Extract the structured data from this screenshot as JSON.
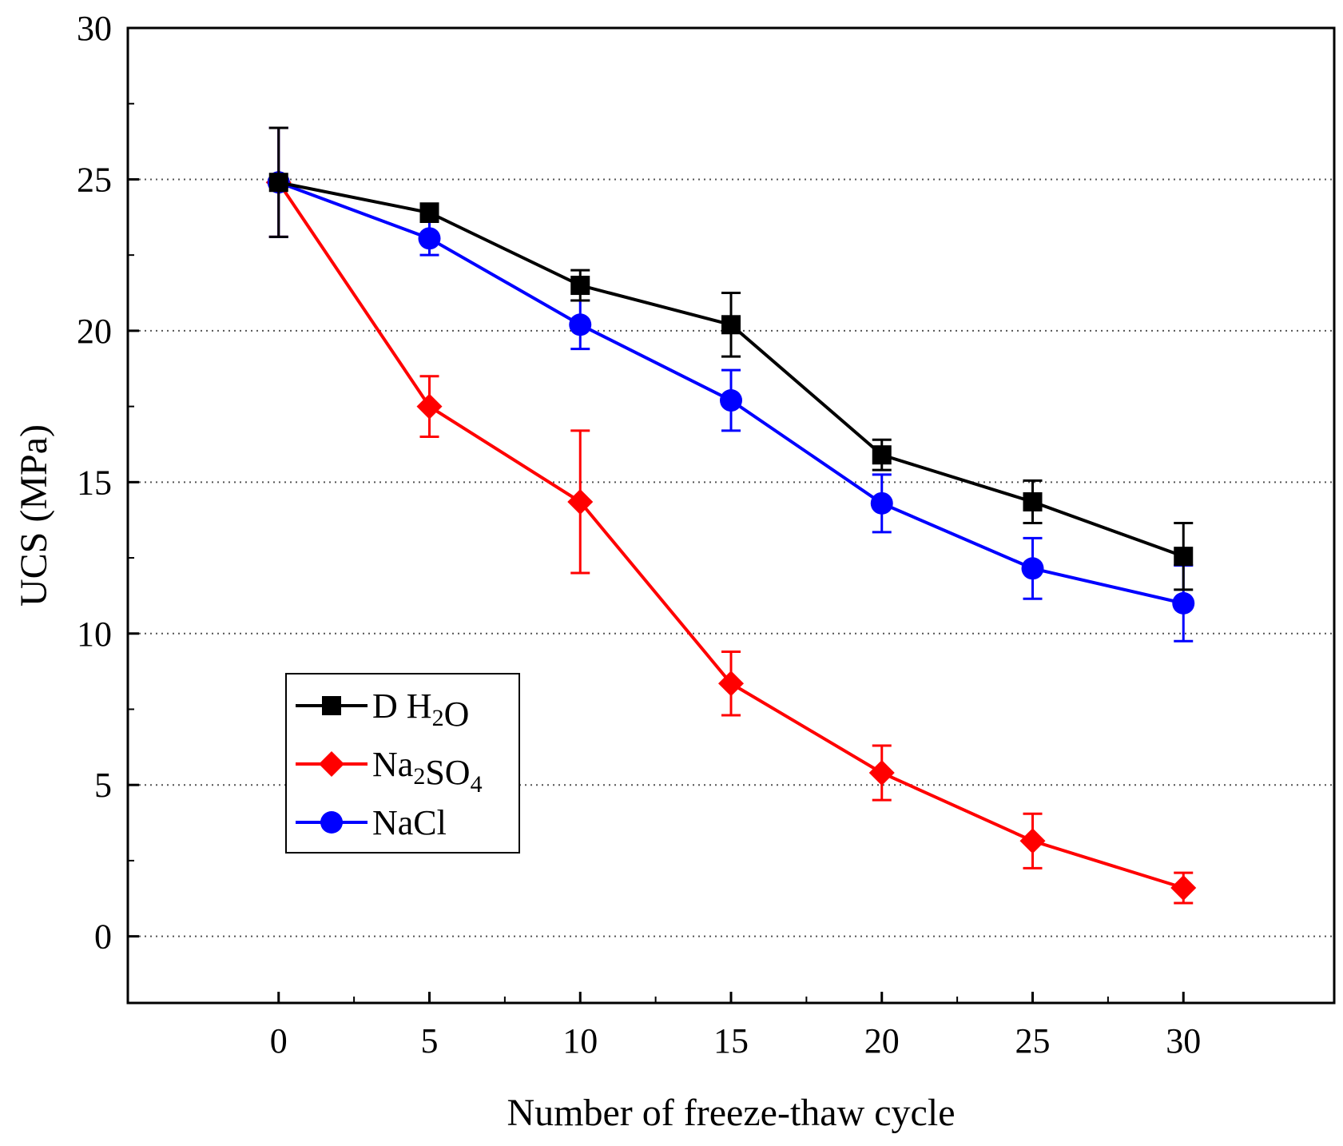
{
  "chart_data": {
    "type": "line",
    "xlabel": "Number of freeze-thaw cycle",
    "ylabel": "UCS (MPa)",
    "xlim": [
      -5,
      35
    ],
    "ylim": [
      -2.2,
      30
    ],
    "x_ticks": [
      0,
      5,
      10,
      15,
      20,
      25,
      30
    ],
    "y_ticks": [
      0,
      5,
      10,
      15,
      20,
      25,
      30
    ],
    "grid": "horizontal dotted",
    "legend_placement": "left-middle",
    "x": [
      0,
      5,
      10,
      15,
      20,
      25,
      30
    ],
    "series": [
      {
        "name": "D H2O",
        "legend": {
          "pre": "D H",
          "sub": "2",
          "post": "O",
          "sub2": ""
        },
        "color": "#000000",
        "marker": "square",
        "values": [
          24.9,
          23.9,
          21.5,
          20.2,
          15.9,
          14.35,
          12.55
        ],
        "errors": [
          1.8,
          0.3,
          0.5,
          1.05,
          0.5,
          0.7,
          1.1
        ]
      },
      {
        "name": "Na2SO4",
        "legend": {
          "pre": "Na",
          "sub": "2",
          "post": "SO",
          "sub2": "4"
        },
        "color": "#ff0000",
        "marker": "diamond",
        "values": [
          24.9,
          17.5,
          14.35,
          8.35,
          5.4,
          3.15,
          1.6
        ],
        "errors": [
          1.8,
          1.0,
          2.35,
          1.05,
          0.9,
          0.9,
          0.5
        ]
      },
      {
        "name": "NaCl",
        "legend": {
          "pre": "NaCl",
          "sub": "",
          "post": "",
          "sub2": ""
        },
        "color": "#0000ff",
        "marker": "circle",
        "values": [
          24.9,
          23.05,
          20.2,
          17.7,
          14.3,
          12.15,
          11.0
        ],
        "errors": [
          1.8,
          0.55,
          0.8,
          1.0,
          0.95,
          1.0,
          1.25
        ]
      }
    ]
  }
}
